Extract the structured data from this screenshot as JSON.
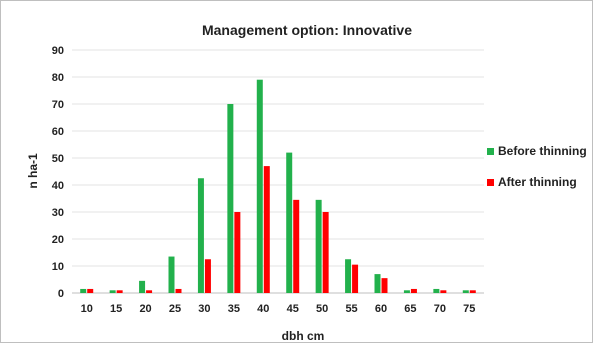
{
  "chart_data": {
    "type": "bar",
    "title": "Management option: Innovative",
    "xlabel": "dbh cm",
    "ylabel": "n ha-1",
    "ylim": [
      0,
      90
    ],
    "yticks": [
      0,
      10,
      20,
      30,
      40,
      50,
      60,
      70,
      80,
      90
    ],
    "grid": true,
    "legend_position": "right",
    "categories": [
      "10",
      "15",
      "20",
      "25",
      "30",
      "35",
      "40",
      "45",
      "50",
      "55",
      "60",
      "65",
      "70",
      "75"
    ],
    "series": [
      {
        "name": "Before thinning",
        "color": "#22b14c",
        "values": [
          1.5,
          1,
          4.5,
          13.5,
          42.5,
          70,
          79,
          52,
          34.5,
          12.5,
          7,
          1,
          1.5,
          1
        ]
      },
      {
        "name": "After thinning",
        "color": "#ff0000",
        "values": [
          1.5,
          1,
          1,
          1.5,
          12.5,
          30,
          47,
          34.5,
          30,
          10.5,
          5.5,
          1.5,
          1,
          1
        ]
      }
    ]
  }
}
